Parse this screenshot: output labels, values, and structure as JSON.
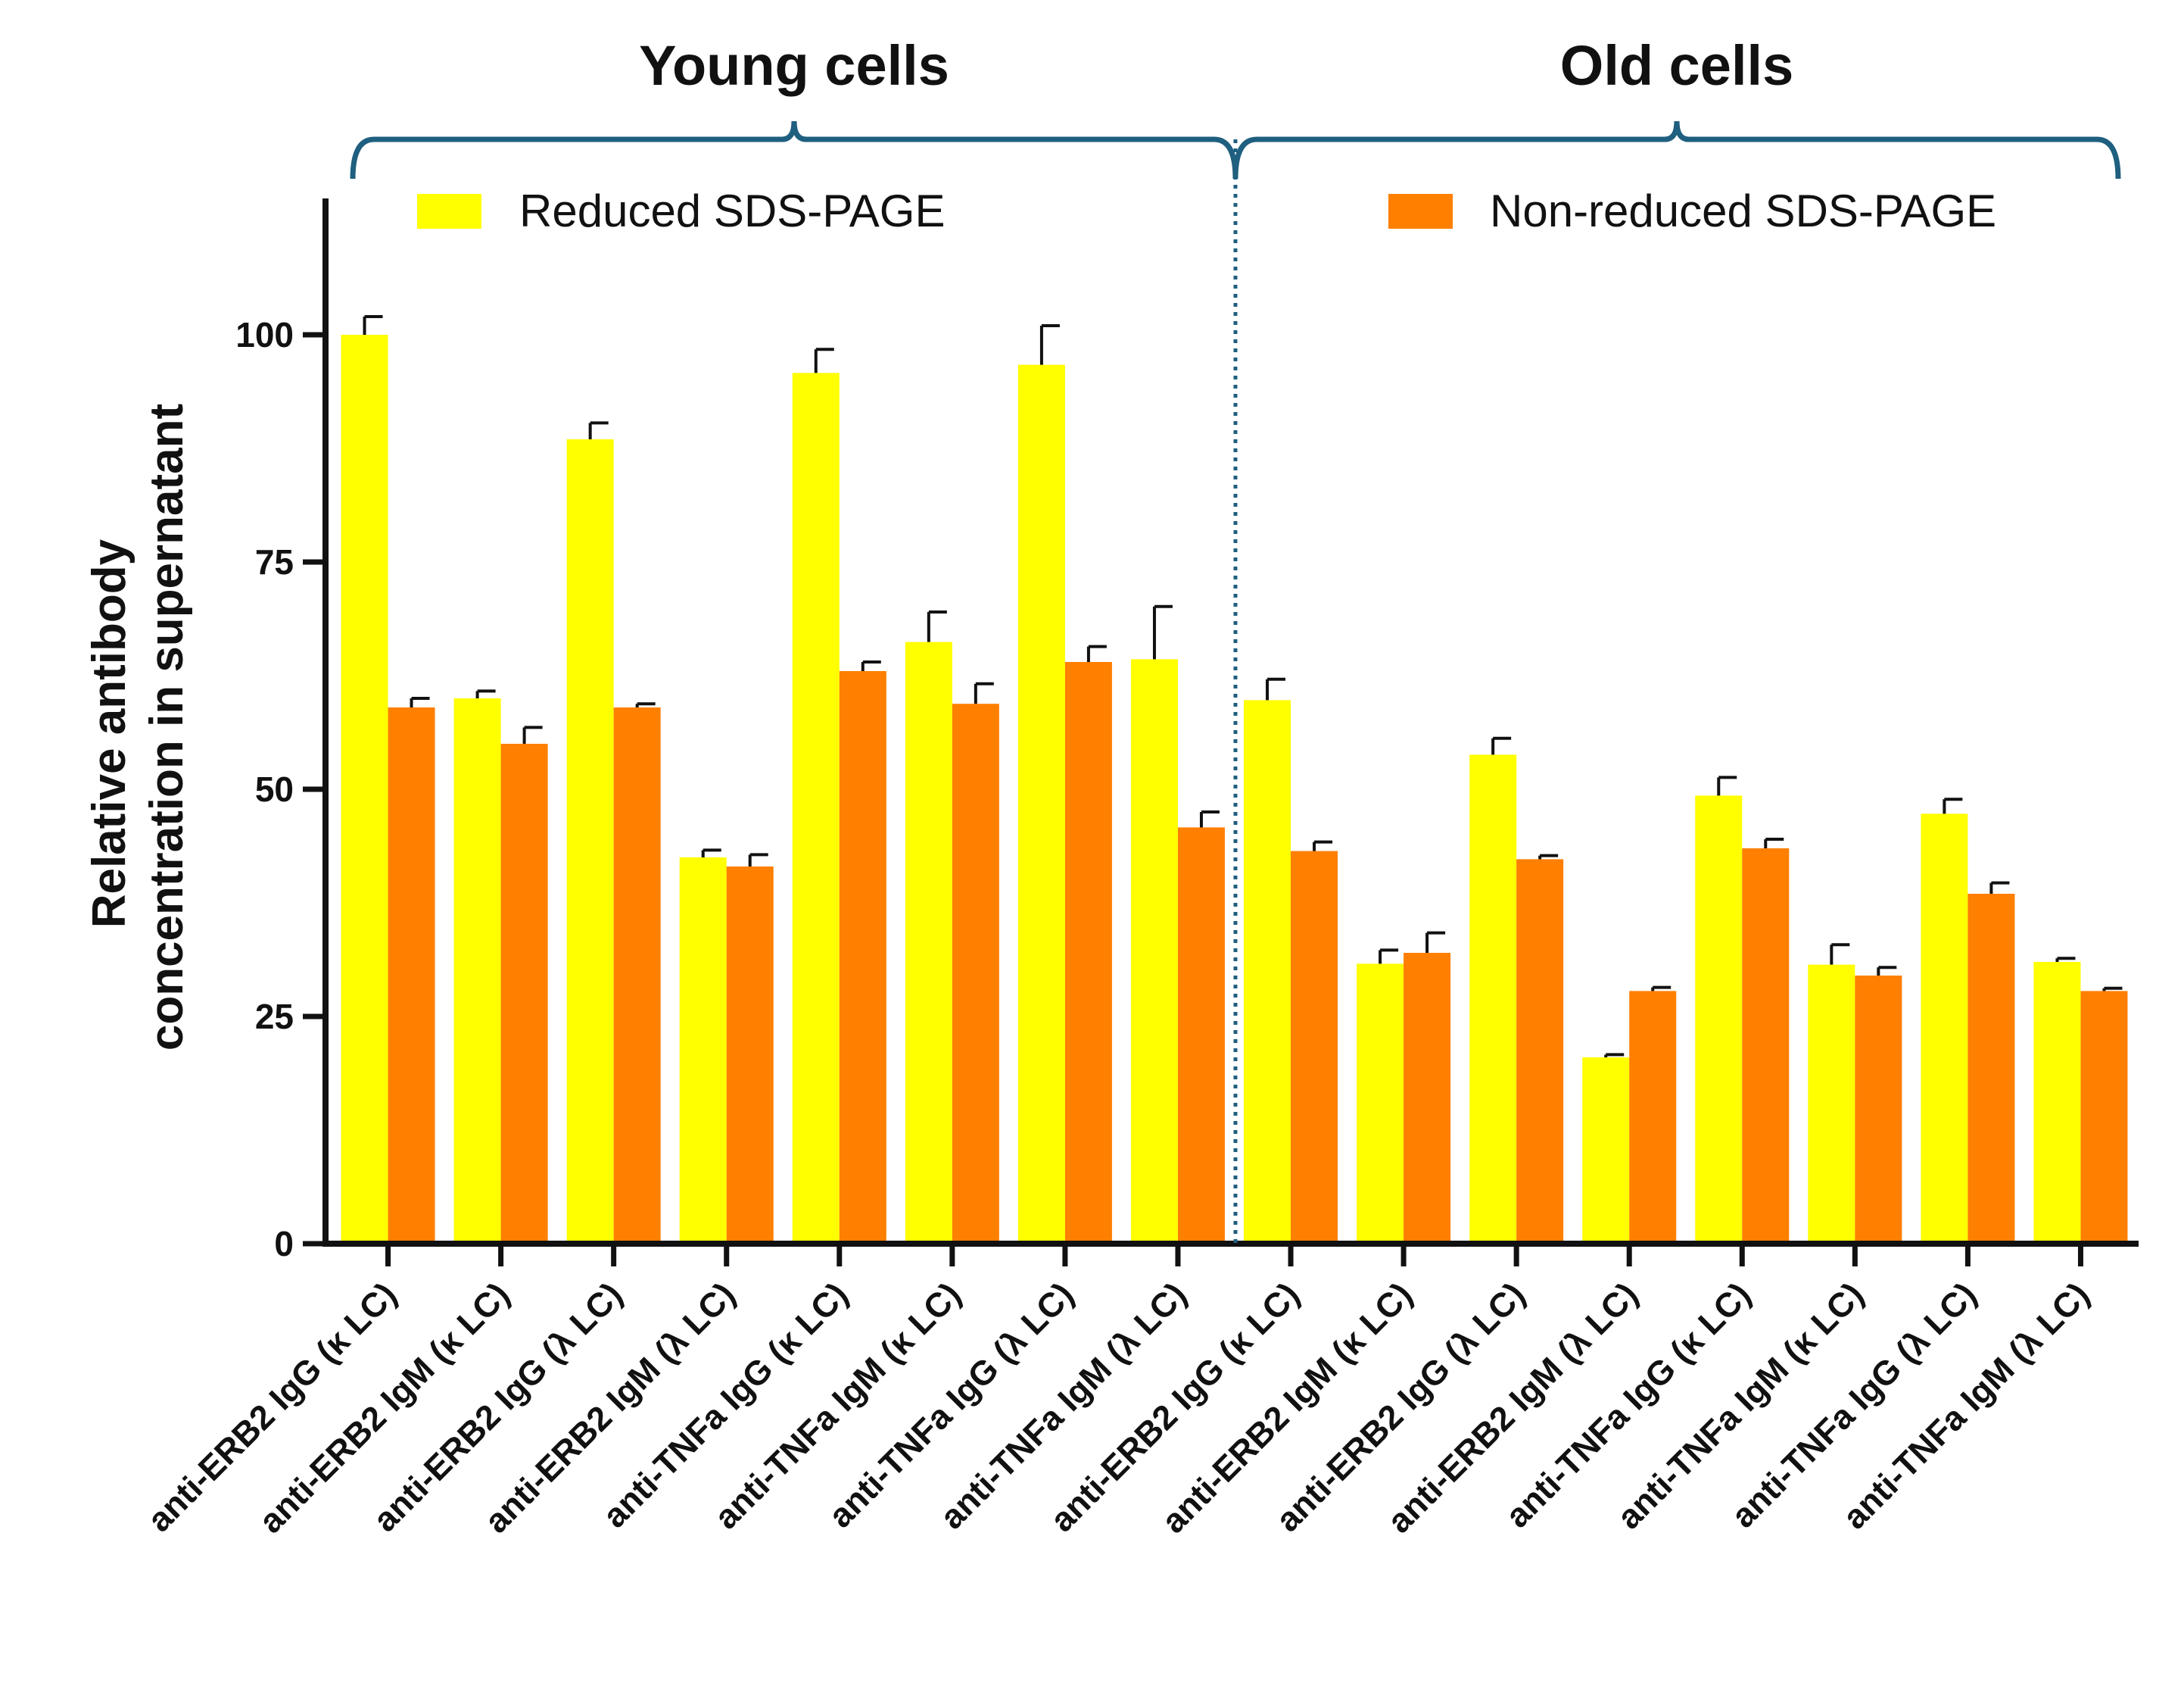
{
  "chart_data": {
    "type": "bar",
    "ylabel_line1": "Relative antibody",
    "ylabel_line2": "concentration in supernatant",
    "xlabel": "",
    "ylim": [
      0,
      115
    ],
    "yticks": [
      0,
      25,
      50,
      75,
      100
    ],
    "groups": [
      {
        "label": "Young cells",
        "category_range": [
          0,
          7
        ]
      },
      {
        "label": "Old cells",
        "category_range": [
          8,
          15
        ]
      }
    ],
    "categories": [
      "anti-ERB2 IgG (κ LC)",
      "anti-ERB2 IgM (κ LC)",
      "anti-ERB2 IgG (λ LC)",
      "anti-ERB2 IgM (λ LC)",
      "anti-TNFa IgG (κ LC)",
      "anti-TNFa IgM (κ LC)",
      "anti-TNFa IgG (λ LC)",
      "anti-TNFa IgM (λ LC)",
      "anti-ERB2 IgG (κ LC)",
      "anti-ERB2 IgM (κ LC)",
      "anti-ERB2 IgG (λ LC)",
      "anti-ERB2 IgM (λ LC)",
      "anti-TNFa IgG (κ LC)",
      "anti-TNFa IgM (κ LC)",
      "anti-TNFa IgG (λ LC)",
      "anti-TNFa IgM (λ LC)"
    ],
    "series": [
      {
        "name": "Reduced SDS-PAGE",
        "color": "#ffff00",
        "values": [
          100,
          60,
          88.5,
          42.5,
          95.8,
          66.2,
          96.7,
          64.3,
          59.8,
          30.8,
          53.8,
          20.5,
          49.3,
          30.7,
          47.3,
          31
        ],
        "errors": [
          2,
          0.8,
          1.8,
          0.8,
          2.6,
          3.3,
          4.3,
          5.8,
          2.3,
          1.5,
          1.8,
          0.3,
          2,
          2.2,
          1.6,
          0.4
        ]
      },
      {
        "name": "Non-reduced SDS-PAGE",
        "color": "#ff7f00",
        "values": [
          59,
          55,
          59,
          41.5,
          63,
          59.4,
          64,
          45.8,
          43.2,
          32,
          42.3,
          27.8,
          43.5,
          29.5,
          38.5,
          27.8
        ],
        "errors": [
          1,
          1.8,
          0.4,
          1.3,
          1,
          2.2,
          1.7,
          1.7,
          1,
          2.2,
          0.4,
          0.4,
          1,
          0.9,
          1.2,
          0.3
        ]
      }
    ]
  }
}
